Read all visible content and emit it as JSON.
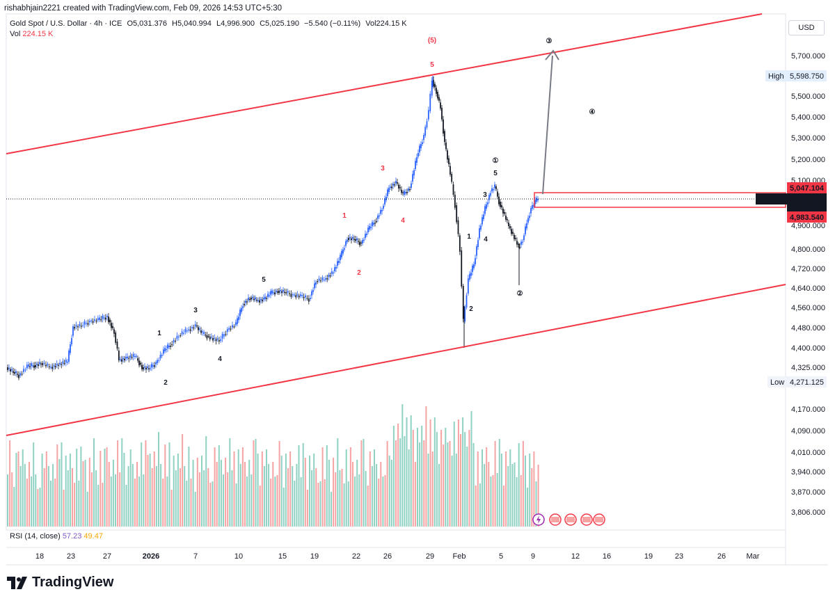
{
  "header": {
    "credit": "rishabhjain2221 created with TradingView.com, Feb 09, 2026 14:53 UTC+5:30",
    "symbol_title": "Gold Spot / U.S. Dollar · 4h · ICE",
    "open": "O5,031.376",
    "high": "H5,040.994",
    "low": "L4,996.900",
    "close": "C5,025.190",
    "change": "−5.540 (−0.11%)",
    "volume": "Vol224.15 K",
    "vol_label": "Vol",
    "vol_value": "224.15 K",
    "currency": "USD"
  },
  "rsi": {
    "label": "RSI (14, close)",
    "value1": "57.23",
    "value2": "49.47"
  },
  "brand": "TradingView",
  "colors": {
    "up": "#2962ff",
    "down": "#131722",
    "channel": "#f23645",
    "vol_up": "#8fd1c3",
    "vol_down": "#f5a3a3",
    "arrow": "#787b86"
  },
  "chart_data": {
    "type": "candlestick",
    "price_ticks": [
      "5,700.000",
      "5,600.000",
      "5,500.000",
      "5,400.000",
      "5,300.000",
      "5,200.000",
      "5,100.000",
      "4,900.000",
      "4,800.000",
      "4,720.000",
      "4,640.000",
      "4,560.000",
      "4,480.000",
      "4,400.000",
      "4,325.000",
      "4,170.000",
      "4,090.000",
      "4,010.000",
      "3,940.000",
      "3,870.000",
      "3,806.000"
    ],
    "time_ticks": [
      "18",
      "23",
      "27",
      "2026",
      "7",
      "10",
      "15",
      "19",
      "22",
      "26",
      "29",
      "Feb",
      "5",
      "9",
      "12",
      "16",
      "19",
      "23",
      "26",
      "Mar"
    ],
    "price_labels": [
      {
        "label": "High",
        "value": "5,598.750"
      },
      {
        "label": "Low",
        "value": "4,271.125"
      },
      {
        "label": "",
        "value": "5,047.104"
      },
      {
        "label": "XAUUSD",
        "value": "5,025.190"
      },
      {
        "label": "",
        "value": "01:36:52"
      },
      {
        "label": "",
        "value": "4,983.540"
      }
    ],
    "wave_labels": [
      {
        "text": "(5)",
        "color": "red"
      },
      {
        "text": "5",
        "color": "red"
      },
      {
        "text": "3",
        "color": "red"
      },
      {
        "text": "1",
        "color": "red"
      },
      {
        "text": "4",
        "color": "red"
      },
      {
        "text": "2",
        "color": "red"
      },
      {
        "text": "1",
        "color": "black"
      },
      {
        "text": "2",
        "color": "black"
      },
      {
        "text": "3",
        "color": "black"
      },
      {
        "text": "4",
        "color": "black"
      },
      {
        "text": "5",
        "color": "black"
      },
      {
        "text": "1",
        "color": "black"
      },
      {
        "text": "2",
        "color": "black"
      },
      {
        "text": "3",
        "color": "black"
      },
      {
        "text": "4",
        "color": "black"
      },
      {
        "text": "5",
        "color": "black"
      },
      {
        "text": "①",
        "color": "black"
      },
      {
        "text": "②",
        "color": "black"
      },
      {
        "text": "③",
        "color": "black"
      },
      {
        "text": "④",
        "color": "black"
      }
    ],
    "volume_scale_note": ""
  }
}
